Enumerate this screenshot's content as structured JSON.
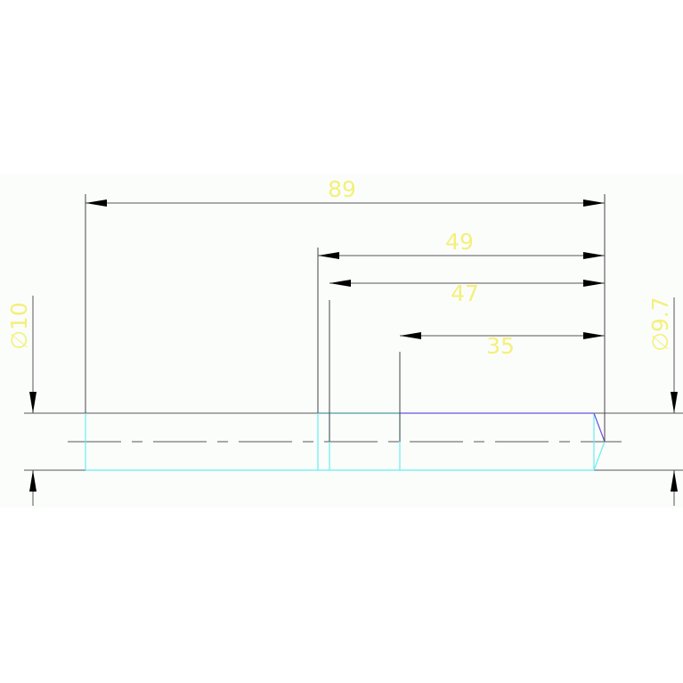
{
  "drawing": {
    "dimensions": {
      "overall_length": "89",
      "length_49": "49",
      "length_47": "47",
      "length_35": "35",
      "diameter_left": "∅10",
      "diameter_right": "∅9.7"
    },
    "colors": {
      "dimension_text": "#f4f07a",
      "outline_cyan": "#66eef2",
      "outline_purple": "#6a52d8",
      "lines": "#555555"
    }
  }
}
